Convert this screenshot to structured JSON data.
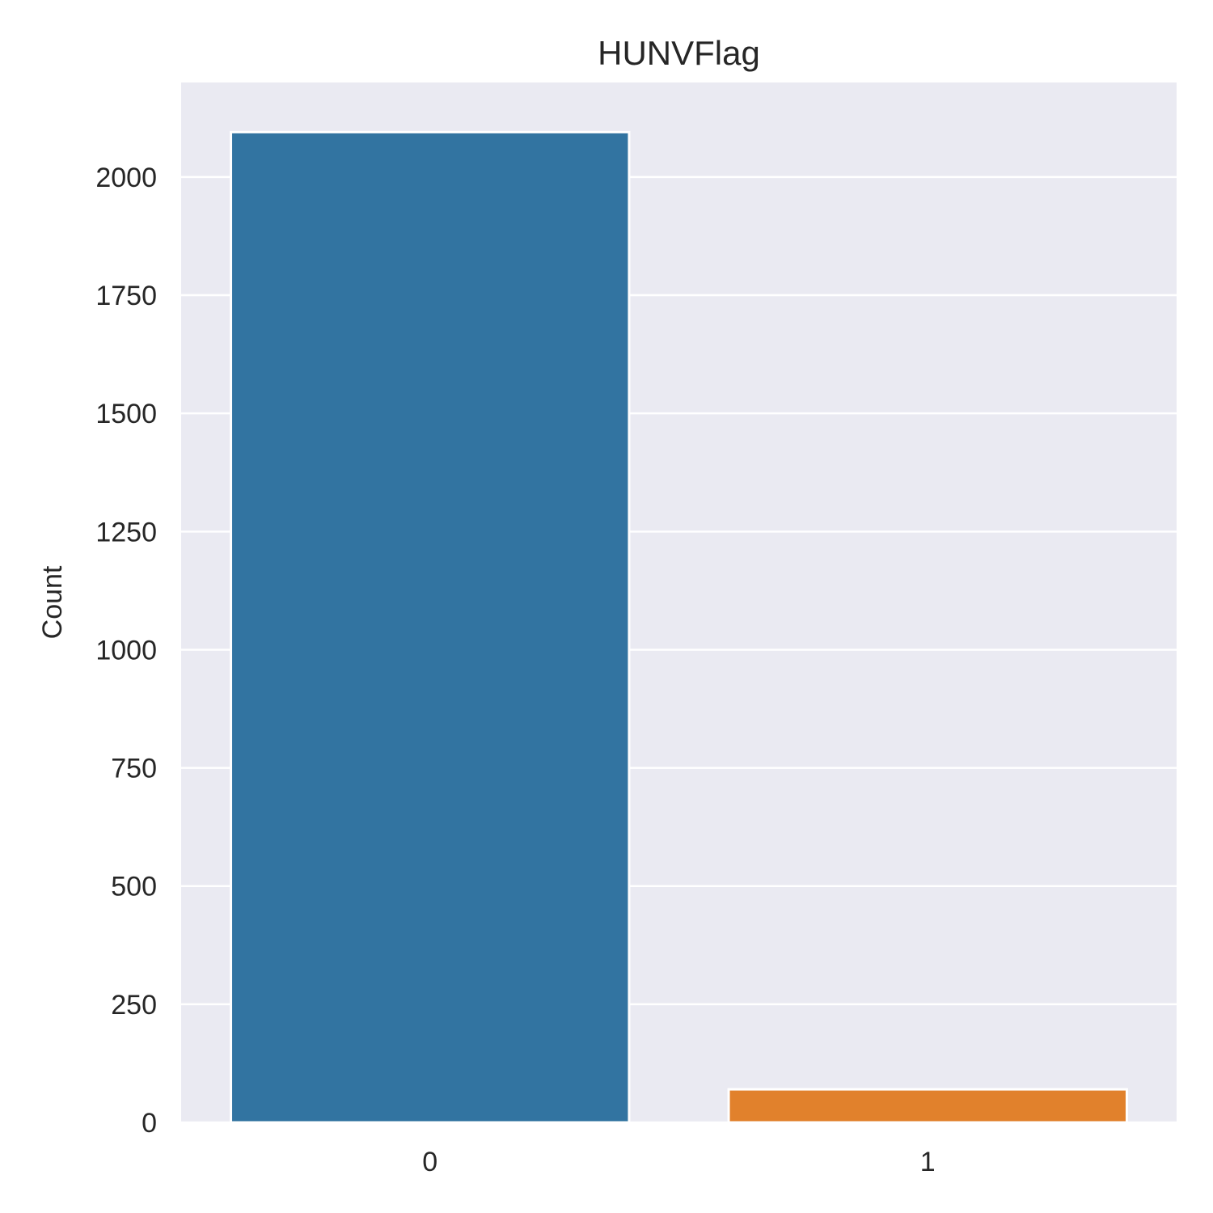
{
  "chart_data": {
    "type": "bar",
    "title": "HUNVFlag",
    "xlabel": "",
    "ylabel": "Count",
    "categories": [
      "0",
      "1"
    ],
    "values": [
      2095,
      70
    ],
    "ylim": [
      0,
      2200
    ],
    "yticks": [
      0,
      250,
      500,
      750,
      1000,
      1250,
      1500,
      1750,
      2000
    ],
    "ytick_labels": [
      "0",
      "250",
      "500",
      "750",
      "1000",
      "1250",
      "1500",
      "1750",
      "2000"
    ],
    "grid": true,
    "legend": "none",
    "colors": [
      "#3274a1",
      "#e1812c"
    ],
    "background": "#eaeaf2"
  }
}
